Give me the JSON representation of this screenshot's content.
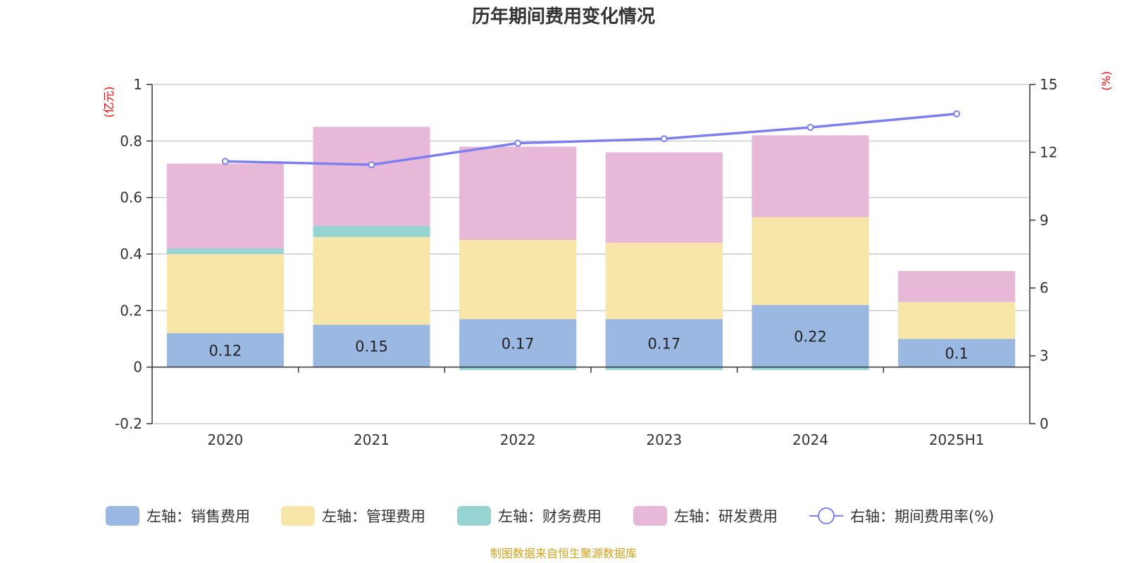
{
  "chart_data": {
    "type": "bar",
    "stacked": true,
    "title": "历年期间费用变化情况",
    "categories": [
      "2020",
      "2021",
      "2022",
      "2023",
      "2024",
      "2025H1"
    ],
    "left_axis": {
      "unit": "(亿元)",
      "ylim": [
        -0.2,
        1
      ],
      "ticks": [
        "1",
        "0.8",
        "0.6",
        "0.4",
        "0.2",
        "0",
        "-0.2"
      ],
      "tick_values": [
        1,
        0.8,
        0.6,
        0.4,
        0.2,
        0,
        -0.2
      ]
    },
    "right_axis": {
      "unit": "(%)",
      "ylim": [
        0,
        15
      ],
      "ticks": [
        "15",
        "12",
        "9",
        "6",
        "3",
        "0"
      ],
      "tick_values": [
        15,
        12,
        9,
        6,
        3,
        0
      ]
    },
    "grid": true,
    "series": [
      {
        "name": "左轴：销售费用",
        "type": "bar",
        "axis": "left",
        "color": "#9bb8e3",
        "values": [
          0.12,
          0.15,
          0.17,
          0.17,
          0.22,
          0.1
        ],
        "labels": [
          "0.12",
          "0.15",
          "0.17",
          "0.17",
          "0.22",
          "0.1"
        ]
      },
      {
        "name": "左轴：管理费用",
        "type": "bar",
        "axis": "left",
        "color": "#f8e6a8",
        "values": [
          0.28,
          0.31,
          0.28,
          0.27,
          0.31,
          0.13
        ]
      },
      {
        "name": "左轴：财务费用",
        "type": "bar",
        "axis": "left",
        "color": "#96d4d4",
        "values": [
          0.02,
          0.04,
          -0.01,
          -0.01,
          -0.01,
          0
        ]
      },
      {
        "name": "左轴：研发费用",
        "type": "bar",
        "axis": "left",
        "color": "#e8b8d8",
        "values": [
          0.3,
          0.35,
          0.33,
          0.32,
          0.29,
          0.11
        ]
      },
      {
        "name": "右轴：期间费用率(%)",
        "type": "line",
        "axis": "right",
        "color": "#7b7ff0",
        "values": [
          11.6,
          11.45,
          12.4,
          12.6,
          13.1,
          13.7
        ]
      }
    ],
    "legend_position": "bottom"
  },
  "source": "制图数据来自恒生聚源数据库"
}
